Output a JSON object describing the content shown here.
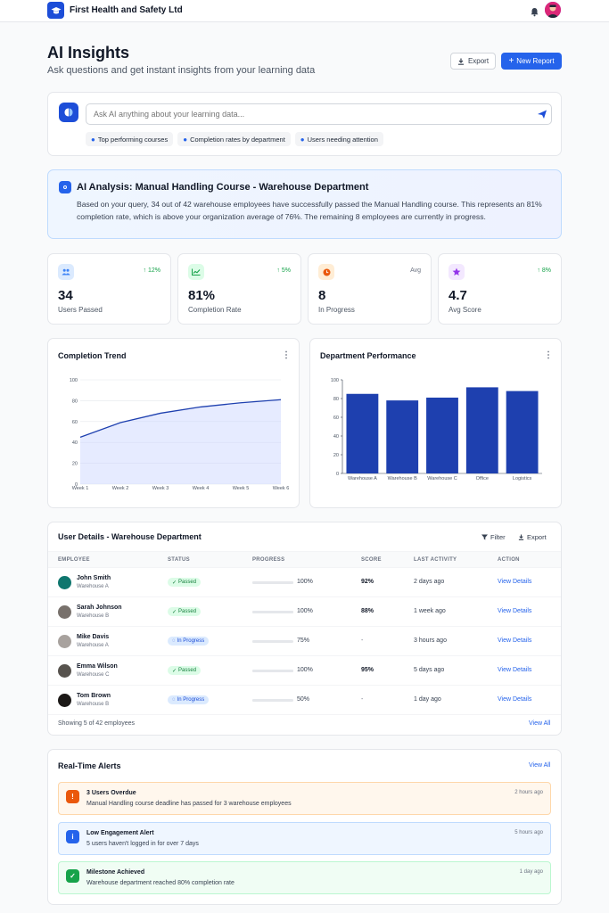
{
  "header": {
    "company": "First Health and Safety Ltd"
  },
  "page": {
    "title": "AI Insights",
    "subtitle": "Ask questions and get instant insights from your learning data",
    "export_label": "Export",
    "new_report_label": "New Report"
  },
  "ask": {
    "placeholder": "Ask AI anything about your learning data...",
    "chips": [
      "Top performing courses",
      "Completion rates by department",
      "Users needing attention"
    ]
  },
  "analysis": {
    "title": "AI Analysis: Manual Handling Course - Warehouse Department",
    "text": "Based on your query, 34 out of 42 warehouse employees have successfully passed the Manual Handling course. This represents an 81% completion rate, which is above your organization average of 76%. The remaining 8 employees are currently in progress."
  },
  "stats": [
    {
      "value": "34",
      "label": "Users Passed",
      "delta": "12%",
      "color": "#3b82f6",
      "bg": "#dbeafe"
    },
    {
      "value": "81%",
      "label": "Completion Rate",
      "delta": "5%",
      "color": "#16a34a",
      "bg": "#dcfce7"
    },
    {
      "value": "8",
      "label": "In Progress",
      "delta": "Avg",
      "color": "#ea580c",
      "bg": "#ffedd5"
    },
    {
      "value": "4.7",
      "label": "Avg Score",
      "delta": "8%",
      "color": "#9333ea",
      "bg": "#f3e8ff"
    }
  ],
  "chart_data": [
    {
      "type": "area",
      "title": "Completion Trend",
      "x": [
        "Week 1",
        "Week 2",
        "Week 3",
        "Week 4",
        "Week 5",
        "Week 6"
      ],
      "values": [
        45,
        59,
        68,
        74,
        78,
        81
      ],
      "yticks": [
        0,
        20,
        40,
        60,
        80,
        100
      ],
      "ylim": [
        0,
        100
      ],
      "grid": true
    },
    {
      "type": "bar",
      "title": "Department Performance",
      "categories": [
        "Warehouse A",
        "Warehouse B",
        "Warehouse C",
        "Office",
        "Logistics"
      ],
      "values": [
        85,
        78,
        81,
        92,
        88
      ],
      "yticks": [
        0,
        20,
        40,
        60,
        80,
        100
      ],
      "ylim": [
        0,
        100
      ],
      "grid": false
    }
  ],
  "table": {
    "title": "User Details - Warehouse Department",
    "filter_label": "Filter",
    "export_label": "Export",
    "columns": [
      "EMPLOYEE",
      "STATUS",
      "PROGRESS",
      "SCORE",
      "LAST ACTIVITY",
      "ACTION"
    ],
    "rows": [
      {
        "name": "John Smith",
        "location": "Warehouse A",
        "status": "Passed",
        "progress": "100%",
        "progress_value": 1.0,
        "score": "92%",
        "last": "2 days ago",
        "action": "View Details",
        "avatar": "#0f766e"
      },
      {
        "name": "Sarah Johnson",
        "location": "Warehouse B",
        "status": "Passed",
        "progress": "100%",
        "progress_value": 1.0,
        "score": "88%",
        "last": "1 week ago",
        "action": "View Details",
        "avatar": "#78716c"
      },
      {
        "name": "Mike Davis",
        "location": "Warehouse A",
        "status": "In Progress",
        "progress": "75%",
        "progress_value": 0.75,
        "score": "-",
        "last": "3 hours ago",
        "action": "View Details",
        "avatar": "#a8a29e"
      },
      {
        "name": "Emma Wilson",
        "location": "Warehouse C",
        "status": "Passed",
        "progress": "100%",
        "progress_value": 1.0,
        "score": "95%",
        "last": "5 days ago",
        "action": "View Details",
        "avatar": "#57534e"
      },
      {
        "name": "Tom Brown",
        "location": "Warehouse B",
        "status": "In Progress",
        "progress": "50%",
        "progress_value": 0.5,
        "score": "-",
        "last": "1 day ago",
        "action": "View Details",
        "avatar": "#1c1917"
      }
    ],
    "footer": "Showing 5 of 42 employees",
    "view_all": "View All"
  },
  "alerts": {
    "title": "Real-Time Alerts",
    "view_all": "View All",
    "items": [
      {
        "title": "3 Users Overdue",
        "desc": "Manual Handling course deadline has passed for 3 warehouse employees",
        "time": "2 hours ago",
        "icon": "!",
        "color": "#ea580c"
      },
      {
        "title": "Low Engagement Alert",
        "desc": "5 users haven't logged in for over 7 days",
        "time": "5 hours ago",
        "icon": "i",
        "color": "#2563eb"
      },
      {
        "title": "Milestone Achieved",
        "desc": "Warehouse department reached 80% completion rate",
        "time": "1 day ago",
        "icon": "✓",
        "color": "#16a34a"
      }
    ]
  }
}
